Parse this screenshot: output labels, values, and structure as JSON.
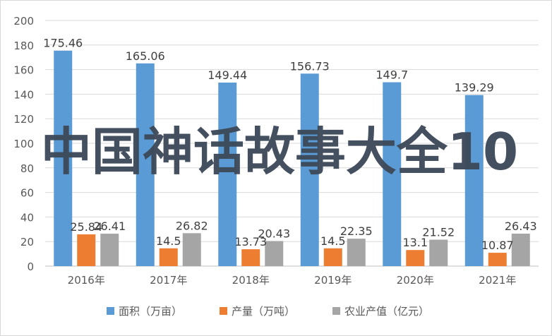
{
  "chart_data": {
    "type": "bar",
    "categories": [
      "2016年",
      "2017年",
      "2018年",
      "2019年",
      "2020年",
      "2021年"
    ],
    "series": [
      {
        "name": "面积（万亩）",
        "values": [
          175.46,
          165.06,
          149.44,
          156.73,
          149.7,
          139.29
        ],
        "color": "#5b9bd5"
      },
      {
        "name": "产量（万吨）",
        "values": [
          25.84,
          14.5,
          13.73,
          14.5,
          13.1,
          10.87
        ],
        "color": "#ed7d31"
      },
      {
        "name": "农业产值（亿元）",
        "values": [
          26.41,
          26.82,
          20.43,
          22.35,
          21.52,
          26.43
        ],
        "color": "#a5a5a5"
      }
    ],
    "title": "",
    "xlabel": "",
    "ylabel": "",
    "ylim": [
      0,
      200
    ],
    "yticks": [
      0,
      20,
      40,
      60,
      80,
      100,
      120,
      140,
      160,
      180,
      200
    ],
    "grid": true,
    "legend": "bottom"
  },
  "watermark": "中国神话故事大全10"
}
